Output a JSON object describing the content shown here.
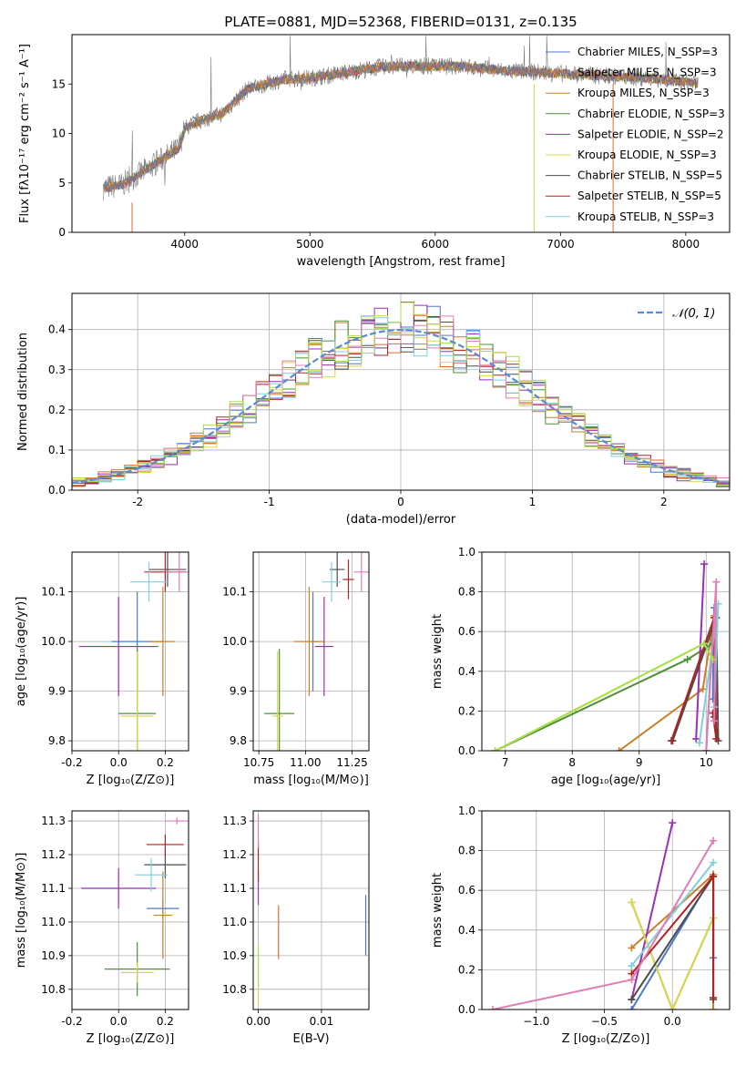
{
  "figure": {
    "title": "PLATE=0881, MJD=52368, FIBERID=0131, z=0.135"
  },
  "palette": [
    "#4c78c8",
    "#e06a2b",
    "#c8802a",
    "#4f8f3a",
    "#9b2fb5",
    "#d8d84a",
    "#4d4d4d",
    "#b22222",
    "#7fd0dc",
    "#e07db5",
    "#aa9c92",
    "#a7e04a"
  ],
  "chart_data": [
    {
      "id": "spectrum",
      "type": "line",
      "xlabel": "wavelength [Angstrom, rest frame]",
      "ylabel": "Flux [fλ10⁻¹⁷ erg cm⁻² s⁻¹ A⁻¹]",
      "xlim": [
        3100,
        8350
      ],
      "ylim": [
        0,
        20
      ],
      "xticks": [
        4000,
        5000,
        6000,
        7000,
        8000
      ],
      "yticks": [
        0,
        5,
        10,
        15
      ],
      "grid": false,
      "legend_position": "upper-right",
      "continuum_x": [
        3350,
        3500,
        3650,
        3800,
        3950,
        4000,
        4100,
        4300,
        4500,
        4800,
        5000,
        5300,
        5600,
        5900,
        6200,
        6500,
        6800,
        7100,
        7400,
        7700,
        8000,
        8100
      ],
      "continuum_y": [
        4.5,
        4.8,
        6.0,
        7.2,
        8.5,
        10.5,
        11.2,
        12.0,
        14.5,
        15.5,
        15.6,
        16.2,
        16.8,
        16.8,
        16.8,
        16.4,
        16.2,
        16.0,
        15.8,
        15.6,
        15.2,
        15.0
      ],
      "series": [
        {
          "name": "Chabrier MILES, N_SSP=3",
          "color": "#4c78c8"
        },
        {
          "name": "Salpeter MILES, N_SSP=3",
          "color": "#e06a2b"
        },
        {
          "name": "Kroupa MILES, N_SSP=3",
          "color": "#c8802a"
        },
        {
          "name": "Chabrier ELODIE, N_SSP=3",
          "color": "#4f8f3a"
        },
        {
          "name": "Salpeter ELODIE, N_SSP=2",
          "color": "#9b2fb5"
        },
        {
          "name": "Kroupa ELODIE, N_SSP=3",
          "color": "#d8d84a"
        },
        {
          "name": "Chabrier STELIB, N_SSP=5",
          "color": "#4d4d4d"
        },
        {
          "name": "Salpeter STELIB, N_SSP=5",
          "color": "#b22222"
        },
        {
          "name": "Kroupa STELIB, N_SSP=3",
          "color": "#7fd0dc"
        }
      ]
    },
    {
      "id": "residuals",
      "type": "bar",
      "xlabel": "(data-model)/error",
      "ylabel": "Normed distribution",
      "xlim": [
        -2.5,
        2.5
      ],
      "ylim": [
        0,
        0.49
      ],
      "xticks": [
        -2,
        -1,
        0,
        1,
        2
      ],
      "yticks": [
        0.0,
        0.1,
        0.2,
        0.3,
        0.4
      ],
      "grid": true,
      "legend_position": "upper-right",
      "legend": "𝒩(0, 1)",
      "bin_width": 0.1,
      "bin_start": -2.5,
      "curve": "normal(0,1)",
      "hist_colors": [
        "#4c78c8",
        "#e06a2b",
        "#c8802a",
        "#4f8f3a",
        "#9b2fb5",
        "#d8d84a",
        "#4d4d4d",
        "#b22222",
        "#7fd0dc",
        "#e07db5",
        "#a7e04a"
      ]
    },
    {
      "id": "age_vs_Z",
      "type": "scatter",
      "xlabel": "Z [log₁₀(Z/Z⊙)]",
      "ylabel": "age  [log₁₀(age/yr)]",
      "xlim": [
        -0.2,
        0.3
      ],
      "ylim": [
        9.78,
        10.18
      ],
      "xticks": [
        -0.2,
        0.0,
        0.2
      ],
      "yticks": [
        9.8,
        9.9,
        10.0,
        10.1
      ],
      "grid": true,
      "points": [
        {
          "x": 0.08,
          "y": 10.0,
          "xerr": 0.11,
          "yerr": 0.1,
          "color": "#4c78c8"
        },
        {
          "x": 0.19,
          "y": 10.0,
          "xerr": 0.05,
          "yerr": 0.11,
          "color": "#c8802a"
        },
        {
          "x": 0.08,
          "y": 9.855,
          "xerr": 0.08,
          "yerr": 0.13,
          "color": "#4f8f3a"
        },
        {
          "x": 0.0,
          "y": 9.99,
          "xerr": 0.17,
          "yerr": 0.1,
          "color": "#9b2fb5"
        },
        {
          "x": 0.08,
          "y": 9.85,
          "xerr": 0.07,
          "yerr": 0.13,
          "color": "#d8d84a"
        },
        {
          "x": 0.21,
          "y": 10.145,
          "xerr": 0.08,
          "yerr": 0.035,
          "color": "#4d4d4d"
        },
        {
          "x": 0.2,
          "y": 10.14,
          "xerr": 0.09,
          "yerr": 0.04,
          "color": "#b22222"
        },
        {
          "x": 0.13,
          "y": 10.12,
          "xerr": 0.08,
          "yerr": 0.04,
          "color": "#7fd0dc"
        },
        {
          "x": 0.26,
          "y": 10.14,
          "xerr": 0.06,
          "yerr": 0.04,
          "color": "#e07db5"
        }
      ]
    },
    {
      "id": "age_vs_mass",
      "type": "scatter",
      "xlabel": "mass [log₁₀(M/M⊙)]",
      "ylabel": "",
      "xlim": [
        10.72,
        11.34
      ],
      "ylim": [
        9.78,
        10.18
      ],
      "xticks": [
        10.75,
        11.0,
        11.25
      ],
      "yticks": [
        9.8,
        9.9,
        10.0,
        10.1
      ],
      "grid": true,
      "points": [
        {
          "x": 11.04,
          "y": 10.0,
          "xerr": 0.03,
          "yerr": 0.1,
          "color": "#4c78c8"
        },
        {
          "x": 11.02,
          "y": 10.0,
          "xerr": 0.08,
          "yerr": 0.11,
          "color": "#c8802a"
        },
        {
          "x": 10.86,
          "y": 9.855,
          "xerr": 0.08,
          "yerr": 0.13,
          "color": "#4f8f3a"
        },
        {
          "x": 11.1,
          "y": 9.99,
          "xerr": 0.05,
          "yerr": 0.1,
          "color": "#9b2fb5"
        },
        {
          "x": 10.85,
          "y": 9.85,
          "xerr": 0.03,
          "yerr": 0.13,
          "color": "#d8d84a"
        },
        {
          "x": 11.17,
          "y": 10.145,
          "xerr": 0.04,
          "yerr": 0.035,
          "color": "#4d4d4d"
        },
        {
          "x": 11.23,
          "y": 10.125,
          "xerr": 0.03,
          "yerr": 0.04,
          "color": "#b22222"
        },
        {
          "x": 11.14,
          "y": 10.12,
          "xerr": 0.05,
          "yerr": 0.04,
          "color": "#7fd0dc"
        },
        {
          "x": 11.3,
          "y": 10.14,
          "xerr": 0.04,
          "yerr": 0.04,
          "color": "#e07db5"
        }
      ]
    },
    {
      "id": "weight_vs_age",
      "type": "line",
      "xlabel": "age  [log₁₀(age/yr)]",
      "ylabel": "mass weight",
      "xlim": [
        6.65,
        10.35
      ],
      "ylim": [
        0,
        1.0
      ],
      "xticks": [
        7,
        8,
        9,
        10
      ],
      "yticks": [
        0.0,
        0.2,
        0.4,
        0.6,
        0.8,
        1.0
      ],
      "grid": true,
      "series": [
        {
          "color": "#4c78c8",
          "x": [
            10.0,
            10.12,
            10.1
          ],
          "y": [
            0.0,
            0.72,
            0.26
          ]
        },
        {
          "color": "#c8802a",
          "x": [
            8.7,
            9.95,
            10.12
          ],
          "y": [
            0.0,
            0.31,
            0.68
          ]
        },
        {
          "color": "#4f8f3a",
          "x": [
            6.85,
            9.72,
            10.1
          ],
          "y": [
            0.0,
            0.46,
            0.54
          ]
        },
        {
          "color": "#9b2fb5",
          "x": [
            9.85,
            9.97
          ],
          "y": [
            0.06,
            0.94
          ]
        },
        {
          "color": "#d8d84a",
          "x": [
            6.85,
            9.97,
            10.1
          ],
          "y": [
            0.0,
            0.54,
            0.46
          ]
        },
        {
          "color": "#4d4d4d",
          "x": [
            9.5,
            10.15,
            10.18,
            10.12
          ],
          "y": [
            0.05,
            0.67,
            0.05,
            0.17
          ]
        },
        {
          "color": "#b22222",
          "x": [
            9.48,
            10.12,
            10.15,
            10.1
          ],
          "y": [
            0.05,
            0.67,
            0.06,
            0.19
          ]
        },
        {
          "color": "#7fd0dc",
          "x": [
            9.9,
            10.18,
            10.12
          ],
          "y": [
            0.04,
            0.74,
            0.22
          ]
        },
        {
          "color": "#e07db5",
          "x": [
            10.0,
            10.15,
            10.12
          ],
          "y": [
            0.0,
            0.85,
            0.15
          ]
        },
        {
          "color": "#a7e04a",
          "x": [
            6.85,
            9.97,
            10.1
          ],
          "y": [
            0.0,
            0.54,
            0.46
          ]
        }
      ]
    },
    {
      "id": "mass_vs_Z",
      "type": "scatter",
      "xlabel": "Z [log₁₀(Z/Z⊙)]",
      "ylabel": "mass [log₁₀(M/M⊙)]",
      "xlim": [
        -0.2,
        0.3
      ],
      "ylim": [
        10.74,
        11.33
      ],
      "xticks": [
        -0.2,
        0.0,
        0.2
      ],
      "yticks": [
        10.8,
        10.9,
        11.0,
        11.1,
        11.2,
        11.3
      ],
      "grid": true,
      "points": [
        {
          "x": 0.19,
          "y": 11.04,
          "xerr": 0.07,
          "yerr": 0.03,
          "color": "#4c78c8"
        },
        {
          "x": 0.19,
          "y": 11.02,
          "xerr": 0.04,
          "yerr": 0.13,
          "color": "#c8802a"
        },
        {
          "x": 0.08,
          "y": 10.86,
          "xerr": 0.14,
          "yerr": 0.08,
          "color": "#4f8f3a"
        },
        {
          "x": 0.0,
          "y": 11.1,
          "xerr": 0.16,
          "yerr": 0.06,
          "color": "#9b2fb5"
        },
        {
          "x": 0.08,
          "y": 10.85,
          "xerr": 0.07,
          "yerr": 0.03,
          "color": "#d8d84a"
        },
        {
          "x": 0.2,
          "y": 11.17,
          "xerr": 0.09,
          "yerr": 0.04,
          "color": "#4d4d4d"
        },
        {
          "x": 0.2,
          "y": 11.23,
          "xerr": 0.08,
          "yerr": 0.03,
          "color": "#b22222"
        },
        {
          "x": 0.14,
          "y": 11.14,
          "xerr": 0.07,
          "yerr": 0.05,
          "color": "#7fd0dc"
        },
        {
          "x": 0.25,
          "y": 11.3,
          "xerr": 0.05,
          "yerr": 0.01,
          "color": "#e07db5"
        }
      ]
    },
    {
      "id": "mass_vs_ebv",
      "type": "scatter",
      "xlabel": "E(B-V)",
      "ylabel": "",
      "xlim": [
        -0.0008,
        0.0175
      ],
      "ylim": [
        10.74,
        11.33
      ],
      "xticks": [
        0.0,
        0.01
      ],
      "yticks": [
        10.8,
        10.9,
        11.0,
        11.1,
        11.2,
        11.3
      ],
      "grid": true,
      "points": [
        {
          "x": 0.017,
          "y": 10.99,
          "xerr": 0.0,
          "yerr": 0.09,
          "color": "#4c78c8"
        },
        {
          "x": 0.0032,
          "y": 10.97,
          "xerr": 0.0,
          "yerr": 0.08,
          "color": "#e06a2b"
        },
        {
          "x": 0.0,
          "y": 10.83,
          "xerr": 0.0,
          "yerr": 0.08,
          "color": "#d8d84a"
        },
        {
          "x": 0.0,
          "y": 11.1,
          "xerr": 0.0,
          "yerr": 0.05,
          "color": "#9b2fb5"
        },
        {
          "x": 0.0,
          "y": 11.18,
          "xerr": 0.0,
          "yerr": 0.06,
          "color": "#b22222"
        },
        {
          "x": 0.0,
          "y": 11.27,
          "xerr": 0.0,
          "yerr": 0.05,
          "color": "#e07db5"
        },
        {
          "x": 0.0,
          "y": 10.87,
          "xerr": 0.0,
          "yerr": 0.06,
          "color": "#a7e04a"
        }
      ]
    },
    {
      "id": "weight_vs_Z",
      "type": "line",
      "xlabel": "Z [log₁₀(Z/Z⊙)]",
      "ylabel": "mass weight",
      "xlim": [
        -1.4,
        0.42
      ],
      "ylim": [
        0,
        1.0
      ],
      "xticks": [
        -1.0,
        -0.5,
        0.0
      ],
      "yticks": [
        0.0,
        0.2,
        0.4,
        0.6,
        0.8,
        1.0
      ],
      "grid": true,
      "series": [
        {
          "color": "#4c78c8",
          "x": [
            -0.3,
            0.3,
            0.3
          ],
          "y": [
            0.0,
            0.68,
            0.26
          ]
        },
        {
          "color": "#c8802a",
          "x": [
            -0.3,
            0.3,
            0.3
          ],
          "y": [
            0.31,
            0.68,
            0.0
          ]
        },
        {
          "color": "#4f8f3a",
          "x": [
            -0.3,
            0.0,
            0.3
          ],
          "y": [
            0.54,
            0.0,
            0.46
          ]
        },
        {
          "color": "#9b2fb5",
          "x": [
            -0.3,
            0.0
          ],
          "y": [
            0.05,
            0.94
          ]
        },
        {
          "color": "#d8d84a",
          "x": [
            -0.3,
            0.0,
            0.3
          ],
          "y": [
            0.54,
            0.0,
            0.46
          ]
        },
        {
          "color": "#4d4d4d",
          "x": [
            -0.3,
            0.3,
            0.3
          ],
          "y": [
            0.05,
            0.67,
            0.05
          ]
        },
        {
          "color": "#b22222",
          "x": [
            -0.3,
            0.3,
            0.3
          ],
          "y": [
            0.18,
            0.67,
            0.06
          ]
        },
        {
          "color": "#7fd0dc",
          "x": [
            -0.3,
            0.3
          ],
          "y": [
            0.22,
            0.74
          ]
        },
        {
          "color": "#e07db5",
          "x": [
            -1.32,
            -0.3,
            0.3
          ],
          "y": [
            0.0,
            0.15,
            0.85
          ]
        }
      ]
    }
  ]
}
